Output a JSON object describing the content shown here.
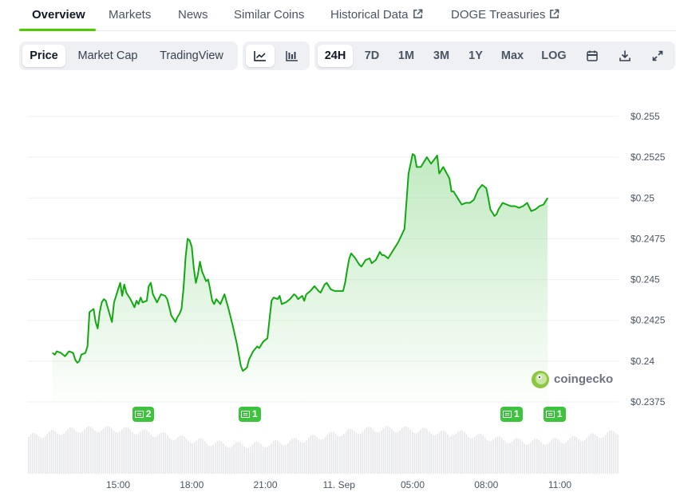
{
  "tabs": [
    {
      "label": "Overview",
      "active": true
    },
    {
      "label": "Markets"
    },
    {
      "label": "News"
    },
    {
      "label": "Similar Coins"
    },
    {
      "label": "Historical Data",
      "external": true
    },
    {
      "label": "DOGE Treasuries",
      "external": true
    }
  ],
  "toolbar": {
    "view_tabs": [
      "Price",
      "Market Cap",
      "TradingView"
    ],
    "selected_view": "Price",
    "chart_style_icons": [
      "line-chart-icon",
      "candlestick-chart-icon"
    ],
    "ranges": [
      "24H",
      "7D",
      "1M",
      "3M",
      "1Y",
      "Max",
      "LOG"
    ],
    "selected_range": "24H",
    "action_icons": [
      "calendar-icon",
      "download-icon",
      "expand-icon"
    ]
  },
  "news_markers": [
    {
      "count": "2",
      "x_time": "16:00"
    },
    {
      "count": "1",
      "x_time": "20:20"
    },
    {
      "count": "1",
      "x_time": "07:00"
    },
    {
      "count": "1",
      "x_time": "08:45"
    }
  ],
  "watermark": {
    "text": "coingecko"
  },
  "colors": {
    "accent": "#4bcc00",
    "line": "#13a813",
    "fill": "#8fd98f",
    "badge": "#3ec33e"
  },
  "chart_data": {
    "type": "area",
    "series": [
      {
        "points": [
          [
            "12:20",
            0.2405
          ],
          [
            "12:25",
            0.2404
          ],
          [
            "12:30",
            0.2406
          ],
          [
            "12:40",
            0.2405
          ],
          [
            "12:50",
            0.2403
          ],
          [
            "13:00",
            0.2406
          ],
          [
            "13:10",
            0.2405
          ],
          [
            "13:15",
            0.2401
          ],
          [
            "13:20",
            0.2399
          ],
          [
            "13:25",
            0.24
          ],
          [
            "13:30",
            0.2404
          ],
          [
            "13:40",
            0.2405
          ],
          [
            "13:45",
            0.2409
          ],
          [
            "13:50",
            0.243
          ],
          [
            "14:00",
            0.2432
          ],
          [
            "14:05",
            0.2424
          ],
          [
            "14:10",
            0.242
          ],
          [
            "14:15",
            0.243
          ],
          [
            "14:20",
            0.2436
          ],
          [
            "14:25",
            0.2438
          ],
          [
            "14:30",
            0.2437
          ],
          [
            "14:40",
            0.2428
          ],
          [
            "14:45",
            0.2424
          ],
          [
            "14:50",
            0.2436
          ],
          [
            "15:05",
            0.2448
          ],
          [
            "15:10",
            0.244
          ],
          [
            "15:15",
            0.2447
          ],
          [
            "15:20",
            0.2442
          ],
          [
            "15:25",
            0.244
          ],
          [
            "15:30",
            0.2438
          ],
          [
            "15:40",
            0.2433
          ],
          [
            "15:45",
            0.2437
          ],
          [
            "15:50",
            0.2435
          ],
          [
            "15:55",
            0.2439
          ],
          [
            "16:00",
            0.2436
          ],
          [
            "16:10",
            0.2437
          ],
          [
            "16:15",
            0.2446
          ],
          [
            "16:20",
            0.2448
          ],
          [
            "16:25",
            0.2441
          ],
          [
            "16:35",
            0.2436
          ],
          [
            "16:45",
            0.2441
          ],
          [
            "16:55",
            0.244
          ],
          [
            "17:00",
            0.2438
          ],
          [
            "17:05",
            0.2433
          ],
          [
            "17:10",
            0.2428
          ],
          [
            "17:20",
            0.2424
          ],
          [
            "17:25",
            0.2427
          ],
          [
            "17:30",
            0.2429
          ],
          [
            "17:35",
            0.2432
          ],
          [
            "17:40",
            0.2445
          ],
          [
            "17:45",
            0.2464
          ],
          [
            "17:50",
            0.2475
          ],
          [
            "17:55",
            0.2474
          ],
          [
            "18:00",
            0.247
          ],
          [
            "18:05",
            0.2457
          ],
          [
            "18:10",
            0.2448
          ],
          [
            "18:15",
            0.2453
          ],
          [
            "18:20",
            0.2461
          ],
          [
            "18:25",
            0.2455
          ],
          [
            "18:35",
            0.2449
          ],
          [
            "18:40",
            0.245
          ],
          [
            "18:45",
            0.2444
          ],
          [
            "18:50",
            0.2437
          ],
          [
            "18:55",
            0.2435
          ],
          [
            "19:00",
            0.2438
          ],
          [
            "19:10",
            0.2435
          ],
          [
            "19:20",
            0.2441
          ],
          [
            "19:30",
            0.2432
          ],
          [
            "19:40",
            0.2422
          ],
          [
            "19:50",
            0.2411
          ],
          [
            "20:00",
            0.2397
          ],
          [
            "20:05",
            0.2394
          ],
          [
            "20:10",
            0.2395
          ],
          [
            "20:15",
            0.2396
          ],
          [
            "20:20",
            0.2401
          ],
          [
            "20:30",
            0.2406
          ],
          [
            "20:40",
            0.2409
          ],
          [
            "20:45",
            0.2408
          ],
          [
            "20:55",
            0.2412
          ],
          [
            "21:05",
            0.2414
          ],
          [
            "21:15",
            0.2437
          ],
          [
            "21:20",
            0.2439
          ],
          [
            "21:30",
            0.2438
          ],
          [
            "21:35",
            0.244
          ],
          [
            "21:40",
            0.2435
          ],
          [
            "21:50",
            0.2436
          ],
          [
            "22:00",
            0.2438
          ],
          [
            "22:10",
            0.2441
          ],
          [
            "22:15",
            0.244
          ],
          [
            "22:20",
            0.2438
          ],
          [
            "22:30",
            0.244
          ],
          [
            "22:35",
            0.2437
          ],
          [
            "22:40",
            0.2441
          ],
          [
            "22:50",
            0.2443
          ],
          [
            "23:00",
            0.2446
          ],
          [
            "23:10",
            0.2443
          ],
          [
            "23:15",
            0.2442
          ],
          [
            "23:25",
            0.2447
          ],
          [
            "23:30",
            0.2448
          ],
          [
            "23:40",
            0.2444
          ],
          [
            "23:50",
            0.2443
          ],
          [
            "00:00",
            0.2443
          ],
          [
            "00:10",
            0.2443
          ],
          [
            "00:15",
            0.2448
          ],
          [
            "00:20",
            0.2456
          ],
          [
            "00:25",
            0.2463
          ],
          [
            "00:30",
            0.2466
          ],
          [
            "00:40",
            0.2463
          ],
          [
            "00:45",
            0.2461
          ],
          [
            "00:50",
            0.2459
          ],
          [
            "00:55",
            0.2458
          ],
          [
            "01:05",
            0.2462
          ],
          [
            "01:15",
            0.2463
          ],
          [
            "01:20",
            0.246
          ],
          [
            "01:30",
            0.2462
          ],
          [
            "01:40",
            0.2467
          ],
          [
            "01:45",
            0.2465
          ],
          [
            "01:50",
            0.2465
          ],
          [
            "02:00",
            0.2463
          ],
          [
            "02:10",
            0.2467
          ],
          [
            "02:25",
            0.2473
          ],
          [
            "02:40",
            0.2481
          ],
          [
            "02:50",
            0.2515
          ],
          [
            "03:00",
            0.2527
          ],
          [
            "03:05",
            0.2526
          ],
          [
            "03:10",
            0.2519
          ],
          [
            "03:20",
            0.2519
          ],
          [
            "03:30",
            0.2523
          ],
          [
            "03:35",
            0.2525
          ],
          [
            "03:45",
            0.2521
          ],
          [
            "04:00",
            0.2526
          ],
          [
            "04:05",
            0.2515
          ],
          [
            "04:15",
            0.2519
          ],
          [
            "04:30",
            0.2512
          ],
          [
            "04:35",
            0.2504
          ],
          [
            "04:40",
            0.2504
          ],
          [
            "04:50",
            0.25
          ],
          [
            "05:00",
            0.2496
          ],
          [
            "05:10",
            0.2497
          ],
          [
            "05:20",
            0.2497
          ],
          [
            "05:30",
            0.2499
          ],
          [
            "05:40",
            0.2505
          ],
          [
            "05:50",
            0.2508
          ],
          [
            "06:00",
            0.2506
          ],
          [
            "06:05",
            0.25
          ],
          [
            "06:10",
            0.2493
          ],
          [
            "06:20",
            0.2489
          ],
          [
            "06:25",
            0.249
          ],
          [
            "06:30",
            0.2493
          ],
          [
            "06:40",
            0.2497
          ],
          [
            "06:50",
            0.2496
          ],
          [
            "07:00",
            0.2495
          ],
          [
            "07:10",
            0.2495
          ],
          [
            "07:20",
            0.2494
          ],
          [
            "07:30",
            0.2495
          ],
          [
            "07:40",
            0.2497
          ],
          [
            "07:50",
            0.2492
          ],
          [
            "08:00",
            0.2493
          ],
          [
            "08:10",
            0.2495
          ],
          [
            "08:20",
            0.2496
          ],
          [
            "08:30",
            0.25
          ]
        ]
      }
    ],
    "x_ticks": [
      "15:00",
      "18:00",
      "21:00",
      "11. Sep",
      "05:00",
      "08:00",
      "11:00"
    ],
    "y_ticks": [
      "$0.255",
      "$0.2525",
      "$0.25",
      "$0.2475",
      "$0.245",
      "$0.2425",
      "$0.24",
      "$0.2375"
    ],
    "ylim": [
      0.2375,
      0.255
    ],
    "grid": true,
    "volume_bars": true
  }
}
